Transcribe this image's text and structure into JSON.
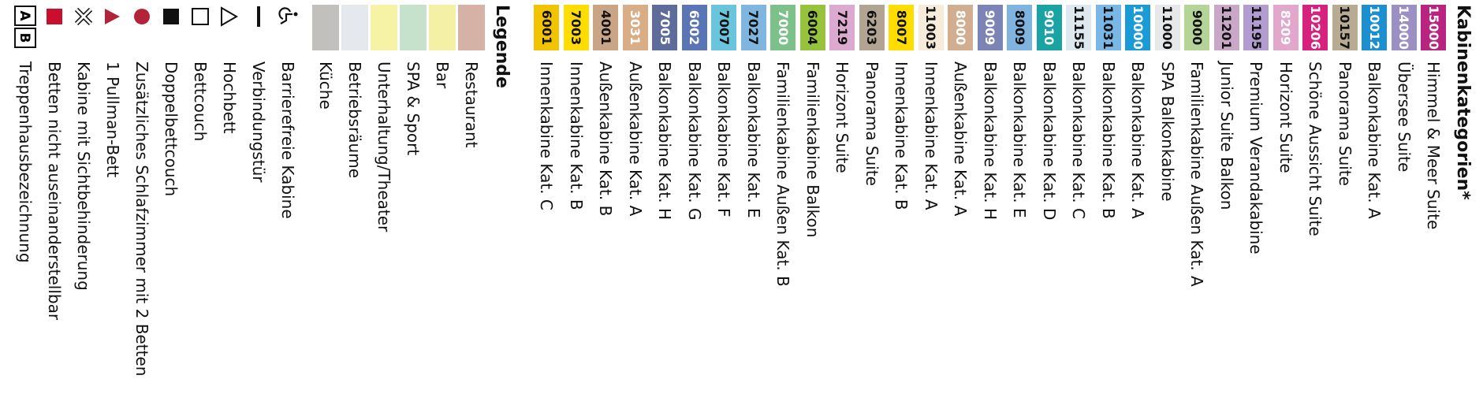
{
  "cabin_categories": {
    "title": "Kabinenkategorien*",
    "items": [
      {
        "code": "15000",
        "label": "Himmel & Meer Suite",
        "color": "#b8247f",
        "text_color": "#ffffff"
      },
      {
        "code": "14000",
        "label": "Übersee Suite",
        "color": "#9b8fc4",
        "text_color": "#ffffff"
      },
      {
        "code": "10012",
        "label": "Balkonkabine Kat. A",
        "color": "#1b8fd0",
        "text_color": "#ffffff"
      },
      {
        "code": "10157",
        "label": "Panorama Suite",
        "color": "#b8ab94",
        "text_color": "#111111"
      },
      {
        "code": "10206",
        "label": "Schöne Aussicht Suite",
        "color": "#d6217e",
        "text_color": "#ffffff"
      },
      {
        "code": "8209",
        "label": "Horizont Suite",
        "color": "#e3a6cc",
        "text_color": "#ffffff"
      },
      {
        "code": "11195",
        "label": "Premium Verandakabine",
        "color": "#b39cd0",
        "text_color": "#111111"
      },
      {
        "code": "11201",
        "label": "Junior Suite Balkon",
        "color": "#c9a7c6",
        "text_color": "#111111"
      },
      {
        "code": "9000",
        "label": "Familienkabine Außen Kat. A",
        "color": "#b5d497",
        "text_color": "#111111"
      },
      {
        "code": "11000",
        "label": "SPA Balkonkabine",
        "color": "#e6e8ea",
        "text_color": "#111111"
      },
      {
        "code": "10000",
        "label": "Balkonkabine Kat. A",
        "color": "#1a9ad6",
        "text_color": "#ffffff"
      },
      {
        "code": "11031",
        "label": "Balkonkabine Kat. B",
        "color": "#79b8e6",
        "text_color": "#111111"
      },
      {
        "code": "11155",
        "label": "Balkonkabine Kat. C",
        "color": "#dde8ef",
        "text_color": "#111111"
      },
      {
        "code": "9010",
        "label": "Balkonkabine Kat. D",
        "color": "#1aa3a3",
        "text_color": "#ffffff"
      },
      {
        "code": "8009",
        "label": "Balkonkabine Kat. E",
        "color": "#7fb3e0",
        "text_color": "#111111"
      },
      {
        "code": "9009",
        "label": "Balkonkabine Kat. H",
        "color": "#7b84b5",
        "text_color": "#ffffff"
      },
      {
        "code": "8000",
        "label": "Außenkabine Kat. A",
        "color": "#d1ae8f",
        "text_color": "#ffffff"
      },
      {
        "code": "11003",
        "label": "Innenkabine Kat. A",
        "color": "#f6ecd9",
        "text_color": "#111111"
      },
      {
        "code": "8007",
        "label": "Innenkabine Kat. B",
        "color": "#ffdd00",
        "text_color": "#111111"
      },
      {
        "code": "6203",
        "label": "Panorama Suite",
        "color": "#b2a493",
        "text_color": "#111111"
      },
      {
        "code": "7219",
        "label": "Horizont Suite",
        "color": "#dcaad0",
        "text_color": "#111111"
      },
      {
        "code": "6004",
        "label": "Familienkabine Balkon",
        "color": "#97c23c",
        "text_color": "#111111"
      },
      {
        "code": "7000",
        "label": "Familienkabine Außen Kat. B",
        "color": "#7cc08a",
        "text_color": "#ffffff"
      },
      {
        "code": "7027",
        "label": "Balkonkabine Kat. E",
        "color": "#7fb6df",
        "text_color": "#111111"
      },
      {
        "code": "7007",
        "label": "Balkonkabine Kat. F",
        "color": "#6ac4dc",
        "text_color": "#111111"
      },
      {
        "code": "6002",
        "label": "Balkonkabine Kat. G",
        "color": "#5a75b5",
        "text_color": "#ffffff"
      },
      {
        "code": "7005",
        "label": "Balkonkabine Kat. H",
        "color": "#5e6c9b",
        "text_color": "#ffffff"
      },
      {
        "code": "3031",
        "label": "Außenkabine Kat. A",
        "color": "#d9ae87",
        "text_color": "#ffffff"
      },
      {
        "code": "4001",
        "label": "Außenkabine Kat. B",
        "color": "#c9a585",
        "text_color": "#111111"
      },
      {
        "code": "7003",
        "label": "Innenkabine Kat. B",
        "color": "#ffdd00",
        "text_color": "#111111"
      },
      {
        "code": "6001",
        "label": "Innenkabine Kat. C",
        "color": "#f2c300",
        "text_color": "#111111"
      }
    ]
  },
  "legend": {
    "title": "Legende",
    "areas": [
      {
        "label": "Restaurant",
        "color": "#d5b1a6"
      },
      {
        "label": "Bar",
        "color": "#f4f0a6"
      },
      {
        "label": "SPA & Sport",
        "color": "#c6e2cc"
      },
      {
        "label": "Unterhaltung/Theater",
        "color": "#f6f2a6"
      },
      {
        "label": "Betriebsräume",
        "color": "#e5e9ee"
      },
      {
        "label": "Küche",
        "color": "#c2c0bc"
      }
    ],
    "symbols": [
      {
        "label": "Barrierefreie Kabine"
      },
      {
        "label": "Verbindungstür"
      },
      {
        "label": "Hochbett"
      },
      {
        "label": "Bettcouch"
      },
      {
        "label": "Doppelbettcouch"
      },
      {
        "label": "Zusätzliches Schlafzimmer mit 2 Betten"
      },
      {
        "label": "1 Pullman-Bett"
      },
      {
        "label": "Kabine mit Sichtbehinderung"
      },
      {
        "label": "Betten nicht auseinanderstellbar"
      },
      {
        "label": "Treppenhausbezeichnung",
        "icon_letters": [
          "A",
          "B"
        ]
      }
    ]
  }
}
